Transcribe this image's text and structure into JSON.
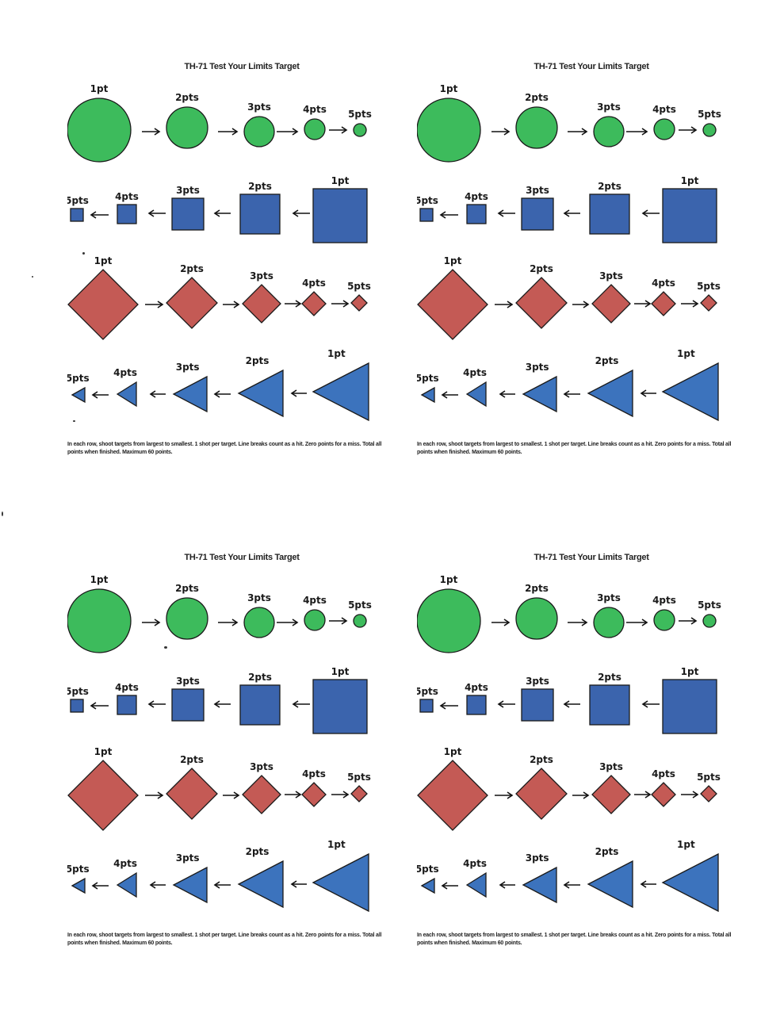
{
  "sheet_title": "TH-71  Test Your Limits Target",
  "instructions": "In each row, shoot targets from largest to smallest. 1 shot per target. Line breaks count as a hit. Zero points for a miss. Total all points when finished. Maximum 60 points.",
  "point_labels": [
    "1pt",
    "2pts",
    "3pts",
    "4pts",
    "5pts"
  ],
  "colors": {
    "circle": "#3dbb5c",
    "square": "#3b64ad",
    "diamond": "#c45a55",
    "triangle": "#3c73bd",
    "outline": "#1a1a1a"
  },
  "rows": [
    {
      "shape": "circle",
      "order": "left-to-right"
    },
    {
      "shape": "square",
      "order": "right-to-left"
    },
    {
      "shape": "diamond",
      "order": "left-to-right"
    },
    {
      "shape": "triangle",
      "order": "right-to-left"
    }
  ],
  "arrow_icon": "arrow-icon",
  "panel_count": 4
}
